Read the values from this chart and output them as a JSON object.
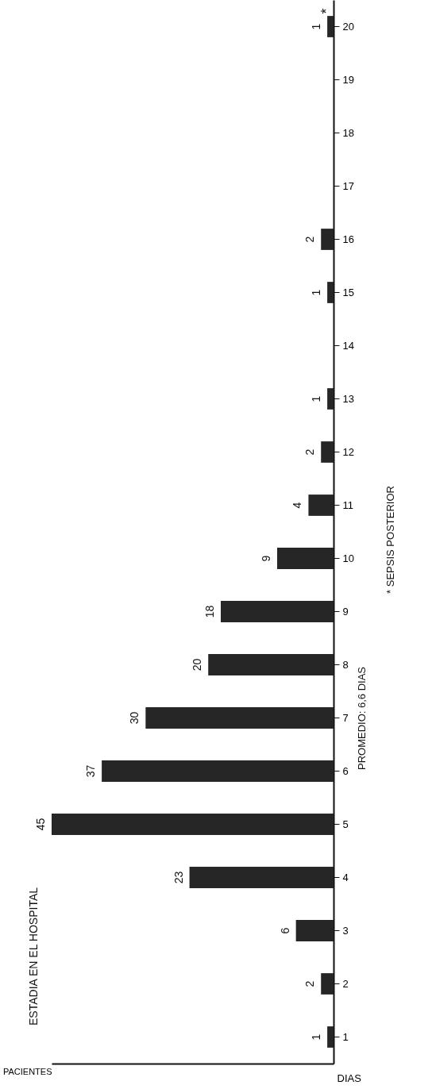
{
  "chart_data": {
    "type": "bar",
    "orientation": "horizontal",
    "title": "ESTADIA EN EL HOSPITAL",
    "xlabel": "PACIENTES",
    "ylabel": "DIAS",
    "categories": [
      "20",
      "19",
      "18",
      "17",
      "16",
      "15",
      "14",
      "13",
      "12",
      "11",
      "10",
      "9",
      "8",
      "7",
      "6",
      "5",
      "4",
      "3",
      "2",
      "1"
    ],
    "values": [
      1,
      null,
      null,
      null,
      2,
      1,
      null,
      1,
      2,
      4,
      9,
      18,
      20,
      30,
      37,
      45,
      23,
      6,
      2,
      1
    ],
    "data_labels": true,
    "color": "#262626",
    "annotations": [
      "*",
      "PROMEDIO: 6,6 DIAS",
      "* SEPSIS POSTERIOR"
    ]
  }
}
